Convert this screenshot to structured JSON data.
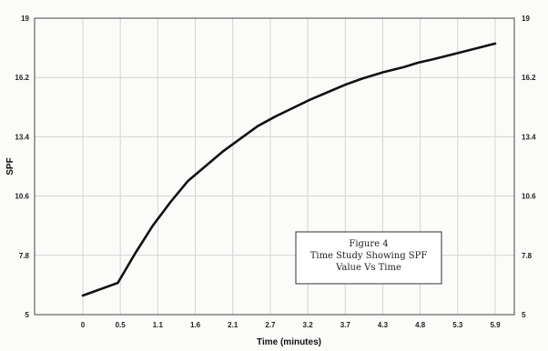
{
  "chart_data": {
    "type": "line",
    "title": "",
    "xlabel": "Time (minutes)",
    "ylabel": "SPF",
    "x_tick_labels": [
      "0",
      "0.5",
      "1.1",
      "1.6",
      "2.1",
      "2.7",
      "3.2",
      "3.7",
      "4.3",
      "4.8",
      "5.3",
      "5.9"
    ],
    "y_ticks": [
      5,
      7.8,
      10.6,
      13.4,
      16.2,
      19
    ],
    "y_tick_labels": [
      "5",
      "7.8",
      "10.6",
      "13.4",
      "16.2",
      "19"
    ],
    "xlim": [
      0,
      5.9
    ],
    "ylim": [
      5,
      19
    ],
    "grid": true,
    "y_axis_right_mirrored": true,
    "series": [
      {
        "color": "#111111",
        "x": [
          0,
          0.5,
          0.75,
          1.0,
          1.25,
          1.5,
          1.75,
          2.0,
          2.25,
          2.5,
          2.75,
          3.0,
          3.25,
          3.5,
          3.75,
          4.0,
          4.3,
          4.6,
          4.8,
          5.0,
          5.3,
          5.6,
          5.9
        ],
        "y": [
          5.9,
          6.5,
          7.9,
          9.2,
          10.3,
          11.3,
          12.0,
          12.7,
          13.3,
          13.9,
          14.35,
          14.75,
          15.15,
          15.5,
          15.85,
          16.15,
          16.45,
          16.7,
          16.9,
          17.05,
          17.3,
          17.55,
          17.8
        ]
      }
    ],
    "annotation": {
      "lines": [
        "Figure 4",
        "Time Study Showing SPF",
        "Value Vs Time"
      ]
    }
  }
}
